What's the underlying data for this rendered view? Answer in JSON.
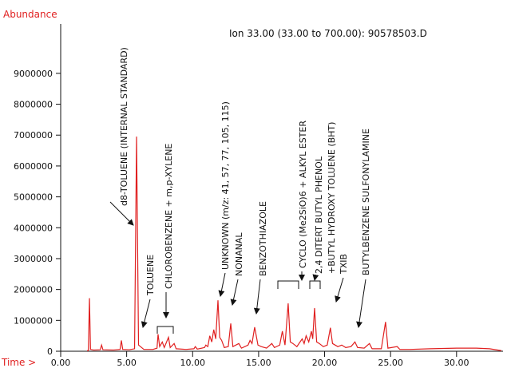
{
  "chart_data": {
    "type": "line",
    "title": "Ion 33.00 (33.00 to 700.00): 90578503.D",
    "y_label": "Abundance",
    "x_label": "Time >",
    "color": "#e02020",
    "xlim": [
      0,
      33.4
    ],
    "ylim": [
      0,
      10600000
    ],
    "xticks": [
      {
        "value": 0,
        "label": "0.00"
      },
      {
        "value": 5,
        "label": "5.00"
      },
      {
        "value": 10,
        "label": "10.00"
      },
      {
        "value": 15,
        "label": "15.00"
      },
      {
        "value": 20,
        "label": "20.00"
      },
      {
        "value": 25,
        "label": "25.00"
      },
      {
        "value": 30,
        "label": "30.00"
      }
    ],
    "yticks": [
      0,
      1000000,
      2000000,
      3000000,
      4000000,
      5000000,
      6000000,
      7000000,
      8000000,
      9000000
    ],
    "x": [
      2.0,
      2.1,
      2.18,
      2.26,
      2.5,
      3.0,
      3.1,
      3.2,
      4.0,
      4.5,
      4.6,
      4.7,
      5.2,
      5.6,
      5.75,
      5.9,
      6.05,
      6.3,
      7.0,
      7.3,
      7.38,
      7.5,
      7.7,
      7.85,
      8.17,
      8.3,
      8.6,
      8.75,
      9.5,
      10.1,
      10.2,
      10.35,
      10.9,
      11.0,
      11.15,
      11.3,
      11.45,
      11.6,
      11.75,
      11.92,
      12.05,
      12.2,
      12.4,
      12.7,
      12.89,
      13.05,
      13.5,
      13.7,
      14.2,
      14.35,
      14.5,
      14.7,
      14.95,
      15.2,
      15.6,
      16.0,
      16.2,
      16.6,
      16.8,
      17.0,
      17.24,
      17.4,
      17.6,
      17.9,
      18.3,
      18.45,
      18.6,
      18.8,
      19.0,
      19.1,
      19.24,
      19.4,
      19.6,
      19.9,
      20.2,
      20.44,
      20.6,
      21.0,
      21.3,
      21.6,
      22.0,
      22.3,
      22.5,
      23.0,
      23.4,
      23.6,
      24.3,
      24.62,
      24.8,
      25.5,
      25.7,
      26.5,
      28,
      30,
      31.5,
      32.5,
      33.4
    ],
    "values": [
      20000,
      20000,
      1720000,
      60000,
      40000,
      50000,
      200000,
      50000,
      40000,
      60000,
      350000,
      60000,
      50000,
      80000,
      6950000,
      200000,
      150000,
      60000,
      60000,
      100000,
      550000,
      150000,
      300000,
      120000,
      450000,
      120000,
      250000,
      80000,
      60000,
      80000,
      150000,
      70000,
      120000,
      200000,
      150000,
      500000,
      300000,
      700000,
      400000,
      1650000,
      450000,
      350000,
      120000,
      150000,
      900000,
      150000,
      250000,
      100000,
      200000,
      350000,
      250000,
      780000,
      200000,
      150000,
      100000,
      250000,
      120000,
      200000,
      650000,
      200000,
      1550000,
      300000,
      250000,
      150000,
      400000,
      250000,
      500000,
      300000,
      650000,
      400000,
      1400000,
      300000,
      250000,
      150000,
      200000,
      760000,
      250000,
      150000,
      200000,
      120000,
      150000,
      300000,
      120000,
      100000,
      250000,
      80000,
      80000,
      950000,
      100000,
      150000,
      60000,
      60000,
      80000,
      100000,
      100000,
      80000,
      20000
    ],
    "annotations": [
      "d8-TOLUENE (INTERNAL STANDARD)",
      "TOLUENE",
      "CHLOROBENZENE + m,p-XYLENE",
      "UNKNOWN (m/z: 41, 57, 77, 105, 115)",
      "NONANAL",
      "BENZOTHIAZOLE",
      "CYCLO (Me2SiO)6 + ALKYL ESTER",
      "2,4 DITERT BUTYL PHENOL",
      "+BUTYL HYDROXY TOLUENE (BHT)",
      "TXIB",
      "BUTYLBENZENE SULFONYLAMINE"
    ]
  }
}
